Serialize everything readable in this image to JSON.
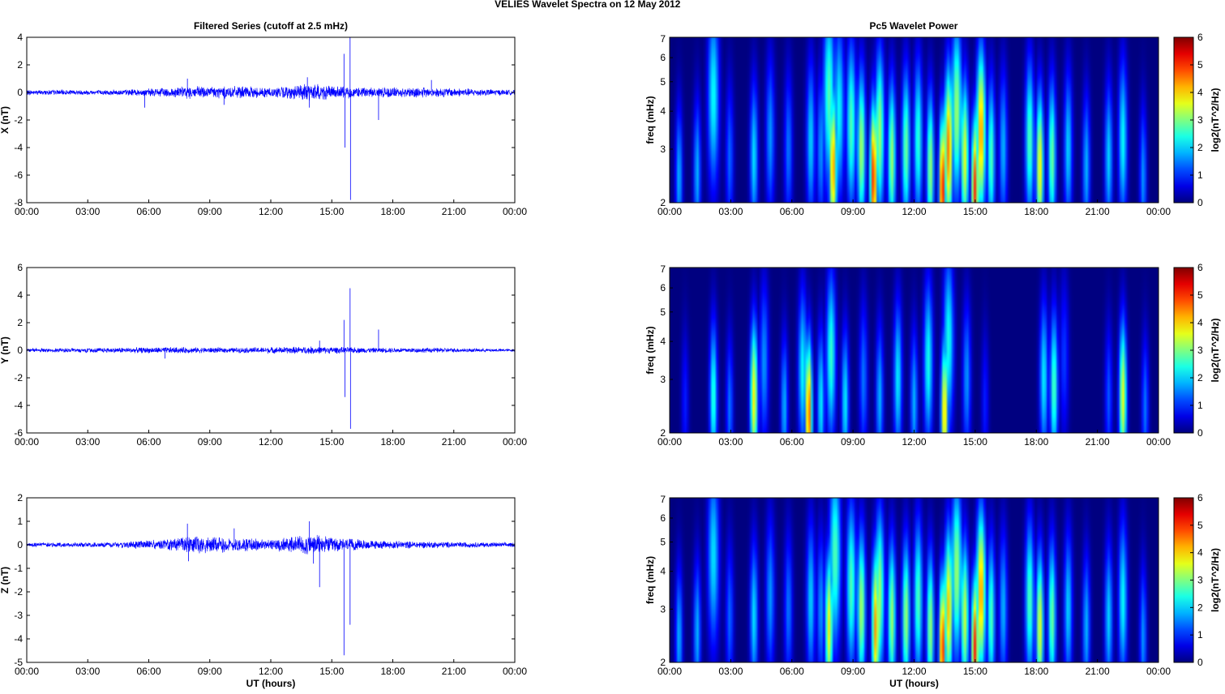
{
  "figure": {
    "suptitle_left": "VELIES Wavelet Spectra on 12 May",
    "suptitle_right": "2012",
    "left_title": "Filtered Series (cutoff at 2.5 mHz)",
    "right_title": "Pc5 Wavelet Power"
  },
  "colors": {
    "trace": "#0000ff",
    "colormap": "jet",
    "background": "#00008f"
  },
  "chart_data": [
    {
      "type": "line",
      "component": "X",
      "ylabel": "X (nT)",
      "xlabel": "",
      "xlim": [
        0,
        24
      ],
      "xticks": [
        "00:00",
        "03:00",
        "06:00",
        "09:00",
        "12:00",
        "15:00",
        "18:00",
        "21:00",
        "00:00"
      ],
      "ylim": [
        -8,
        4
      ],
      "yticks": [
        -8,
        -6,
        -4,
        -2,
        0,
        2,
        4
      ],
      "noise_envelope": [
        [
          0,
          0.2
        ],
        [
          4,
          0.2
        ],
        [
          6,
          0.3
        ],
        [
          8,
          0.5
        ],
        [
          10,
          0.5
        ],
        [
          12,
          0.4
        ],
        [
          13.5,
          0.6
        ],
        [
          14,
          0.8
        ],
        [
          15,
          0.5
        ],
        [
          17,
          0.4
        ],
        [
          20,
          0.4
        ],
        [
          22,
          0.3
        ],
        [
          24,
          0.2
        ]
      ],
      "spikes": [
        [
          5.8,
          -1.1
        ],
        [
          7.9,
          1.0
        ],
        [
          9.7,
          -0.9
        ],
        [
          13.8,
          1.1
        ],
        [
          13.9,
          -1.1
        ],
        [
          15.6,
          2.8
        ],
        [
          15.65,
          -4.0
        ],
        [
          15.9,
          4.0
        ],
        [
          15.92,
          -7.8
        ],
        [
          17.3,
          -2.0
        ],
        [
          19.9,
          0.9
        ]
      ]
    },
    {
      "type": "line",
      "component": "Y",
      "ylabel": "Y (nT)",
      "xlabel": "",
      "xlim": [
        0,
        24
      ],
      "xticks": [
        "00:00",
        "03:00",
        "06:00",
        "09:00",
        "12:00",
        "15:00",
        "18:00",
        "21:00",
        "00:00"
      ],
      "ylim": [
        -6,
        6
      ],
      "yticks": [
        -6,
        -4,
        -2,
        0,
        2,
        4,
        6
      ],
      "noise_envelope": [
        [
          0,
          0.15
        ],
        [
          4,
          0.2
        ],
        [
          7,
          0.25
        ],
        [
          10,
          0.2
        ],
        [
          14,
          0.3
        ],
        [
          17,
          0.2
        ],
        [
          20,
          0.2
        ],
        [
          24,
          0.1
        ]
      ],
      "spikes": [
        [
          15.6,
          2.2
        ],
        [
          15.65,
          -3.4
        ],
        [
          15.9,
          4.5
        ],
        [
          15.92,
          -5.7
        ],
        [
          17.3,
          1.5
        ],
        [
          14.4,
          0.7
        ],
        [
          6.8,
          -0.6
        ]
      ]
    },
    {
      "type": "line",
      "component": "Z",
      "ylabel": "Z (nT)",
      "xlabel": "UT (hours)",
      "xlim": [
        0,
        24
      ],
      "xticks": [
        "00:00",
        "03:00",
        "06:00",
        "09:00",
        "12:00",
        "15:00",
        "18:00",
        "21:00",
        "00:00"
      ],
      "ylim": [
        -5,
        2
      ],
      "yticks": [
        -5,
        -4,
        -3,
        -2,
        -1,
        0,
        1,
        2
      ],
      "noise_envelope": [
        [
          0,
          0.1
        ],
        [
          4,
          0.12
        ],
        [
          7,
          0.25
        ],
        [
          8,
          0.4
        ],
        [
          10,
          0.35
        ],
        [
          12,
          0.25
        ],
        [
          13.8,
          0.5
        ],
        [
          15,
          0.35
        ],
        [
          17,
          0.2
        ],
        [
          20,
          0.15
        ],
        [
          24,
          0.1
        ]
      ],
      "spikes": [
        [
          7.9,
          0.9
        ],
        [
          7.95,
          -0.7
        ],
        [
          13.9,
          1.0
        ],
        [
          14.1,
          -0.8
        ],
        [
          14.4,
          -1.8
        ],
        [
          15.6,
          -4.7
        ],
        [
          15.9,
          -3.4
        ],
        [
          10.2,
          0.7
        ]
      ]
    },
    {
      "type": "heatmap",
      "component": "X",
      "ylabel": "freq (mHz)",
      "xlabel": "",
      "xlim": [
        0,
        24
      ],
      "xticks": [
        "00:00",
        "03:00",
        "06:00",
        "09:00",
        "12:00",
        "15:00",
        "18:00",
        "21:00",
        "00:00"
      ],
      "ylim": [
        2,
        7
      ],
      "yscale": "log",
      "yticks": [
        2,
        3,
        4,
        5,
        6,
        7
      ],
      "colorbar": {
        "label": "log2(nT^2/Hz)",
        "lim": [
          0,
          6
        ],
        "ticks": [
          0,
          1,
          2,
          3,
          4,
          5,
          6
        ]
      },
      "blobs": [
        [
          0.4,
          2.0,
          2.4
        ],
        [
          1.3,
          2.0,
          2.5
        ],
        [
          2.1,
          2.5,
          4.5
        ],
        [
          2.9,
          1.5,
          2.8
        ],
        [
          4.1,
          2.3,
          2.8
        ],
        [
          4.9,
          1.8,
          3.3
        ],
        [
          5.8,
          1.6,
          3.0
        ],
        [
          6.9,
          2.2,
          3.2
        ],
        [
          7.4,
          1.8,
          3.0
        ],
        [
          7.8,
          3.0,
          4.5
        ],
        [
          8.0,
          4.8,
          2.6
        ],
        [
          8.3,
          2.5,
          4.0
        ],
        [
          8.9,
          3.0,
          3.6
        ],
        [
          9.4,
          3.6,
          3.0
        ],
        [
          10.0,
          5.6,
          2.4
        ],
        [
          10.3,
          3.5,
          3.4
        ],
        [
          10.9,
          3.5,
          2.8
        ],
        [
          11.6,
          3.2,
          3.0
        ],
        [
          12.2,
          2.8,
          3.2
        ],
        [
          12.8,
          3.5,
          2.6
        ],
        [
          13.4,
          5.8,
          2.2
        ],
        [
          13.7,
          5.0,
          3.0
        ],
        [
          14.1,
          3.5,
          4.0
        ],
        [
          14.5,
          4.0,
          2.8
        ],
        [
          15.0,
          5.5,
          2.2
        ],
        [
          15.3,
          4.8,
          3.4
        ],
        [
          15.8,
          3.0,
          2.8
        ],
        [
          16.4,
          2.0,
          3.0
        ],
        [
          17.7,
          3.0,
          3.2
        ],
        [
          18.2,
          4.2,
          2.6
        ],
        [
          18.8,
          3.2,
          2.8
        ],
        [
          19.6,
          2.2,
          3.0
        ],
        [
          20.5,
          2.0,
          2.6
        ],
        [
          21.6,
          2.2,
          2.8
        ],
        [
          22.3,
          2.5,
          3.2
        ],
        [
          23.3,
          1.8,
          2.4
        ]
      ]
    },
    {
      "type": "heatmap",
      "component": "Y",
      "ylabel": "freq (mHz)",
      "xlabel": "",
      "xlim": [
        0,
        24
      ],
      "xticks": [
        "00:00",
        "03:00",
        "06:00",
        "09:00",
        "12:00",
        "15:00",
        "18:00",
        "21:00",
        "00:00"
      ],
      "ylim": [
        2,
        7
      ],
      "yscale": "log",
      "yticks": [
        2,
        3,
        4,
        5,
        6,
        7
      ],
      "colorbar": {
        "label": "log2(nT^2/Hz)",
        "lim": [
          0,
          6
        ],
        "ticks": [
          0,
          1,
          2,
          3,
          4,
          5,
          6
        ]
      },
      "blobs": [
        [
          0.7,
          1.0,
          2.5
        ],
        [
          2.1,
          2.8,
          2.6
        ],
        [
          2.9,
          1.6,
          2.4
        ],
        [
          4.1,
          4.2,
          2.6
        ],
        [
          4.6,
          1.8,
          3.4
        ],
        [
          5.6,
          2.0,
          2.4
        ],
        [
          6.5,
          2.5,
          3.2
        ],
        [
          6.8,
          5.2,
          2.3
        ],
        [
          7.4,
          2.4,
          2.5
        ],
        [
          7.9,
          2.8,
          3.6
        ],
        [
          8.6,
          2.4,
          2.5
        ],
        [
          9.5,
          1.6,
          3.0
        ],
        [
          10.3,
          2.0,
          2.6
        ],
        [
          11.2,
          2.4,
          3.0
        ],
        [
          12.0,
          2.0,
          2.5
        ],
        [
          12.7,
          2.6,
          3.4
        ],
        [
          13.5,
          4.5,
          2.3
        ],
        [
          13.7,
          2.6,
          4.0
        ],
        [
          14.6,
          1.8,
          3.0
        ],
        [
          15.5,
          1.0,
          2.5
        ],
        [
          18.4,
          2.4,
          3.0
        ],
        [
          18.9,
          3.0,
          2.8
        ],
        [
          19.4,
          1.2,
          3.5
        ],
        [
          21.6,
          1.4,
          2.6
        ],
        [
          22.3,
          4.0,
          2.6
        ],
        [
          23.4,
          1.6,
          2.4
        ]
      ]
    },
    {
      "type": "heatmap",
      "component": "Z",
      "ylabel": "freq (mHz)",
      "xlabel": "UT (hours)",
      "xlim": [
        0,
        24
      ],
      "xticks": [
        "00:00",
        "03:00",
        "06:00",
        "09:00",
        "12:00",
        "15:00",
        "18:00",
        "21:00",
        "00:00"
      ],
      "ylim": [
        2,
        7
      ],
      "yscale": "log",
      "yticks": [
        2,
        3,
        4,
        5,
        6,
        7
      ],
      "colorbar": {
        "label": "log2(nT^2/Hz)",
        "lim": [
          0,
          6
        ],
        "ticks": [
          0,
          1,
          2,
          3,
          4,
          5,
          6
        ]
      },
      "blobs": [
        [
          0.4,
          2.0,
          2.4
        ],
        [
          1.3,
          2.0,
          2.5
        ],
        [
          2.1,
          2.3,
          4.5
        ],
        [
          2.9,
          1.5,
          2.8
        ],
        [
          4.1,
          2.3,
          2.8
        ],
        [
          4.9,
          1.8,
          3.3
        ],
        [
          5.8,
          1.6,
          3.0
        ],
        [
          6.9,
          2.2,
          3.2
        ],
        [
          7.4,
          1.8,
          3.0
        ],
        [
          7.8,
          4.2,
          2.6
        ],
        [
          8.1,
          3.0,
          4.5
        ],
        [
          8.9,
          3.0,
          3.6
        ],
        [
          9.4,
          3.6,
          3.0
        ],
        [
          10.1,
          4.8,
          2.6
        ],
        [
          10.3,
          3.5,
          3.4
        ],
        [
          10.9,
          3.5,
          2.8
        ],
        [
          11.6,
          3.5,
          2.8
        ],
        [
          12.2,
          3.0,
          3.2
        ],
        [
          12.8,
          3.5,
          2.6
        ],
        [
          13.4,
          5.6,
          2.2
        ],
        [
          13.7,
          4.5,
          3.0
        ],
        [
          14.1,
          3.5,
          4.0
        ],
        [
          14.5,
          3.8,
          2.8
        ],
        [
          15.0,
          5.6,
          2.2
        ],
        [
          15.3,
          4.8,
          3.4
        ],
        [
          15.8,
          3.0,
          2.8
        ],
        [
          16.4,
          2.0,
          3.0
        ],
        [
          17.7,
          3.0,
          3.2
        ],
        [
          18.2,
          4.0,
          2.6
        ],
        [
          18.8,
          3.2,
          2.8
        ],
        [
          19.6,
          2.2,
          3.0
        ],
        [
          20.5,
          2.0,
          2.6
        ],
        [
          21.6,
          2.2,
          2.8
        ],
        [
          22.3,
          2.5,
          3.2
        ],
        [
          23.3,
          1.8,
          2.4
        ]
      ]
    }
  ]
}
